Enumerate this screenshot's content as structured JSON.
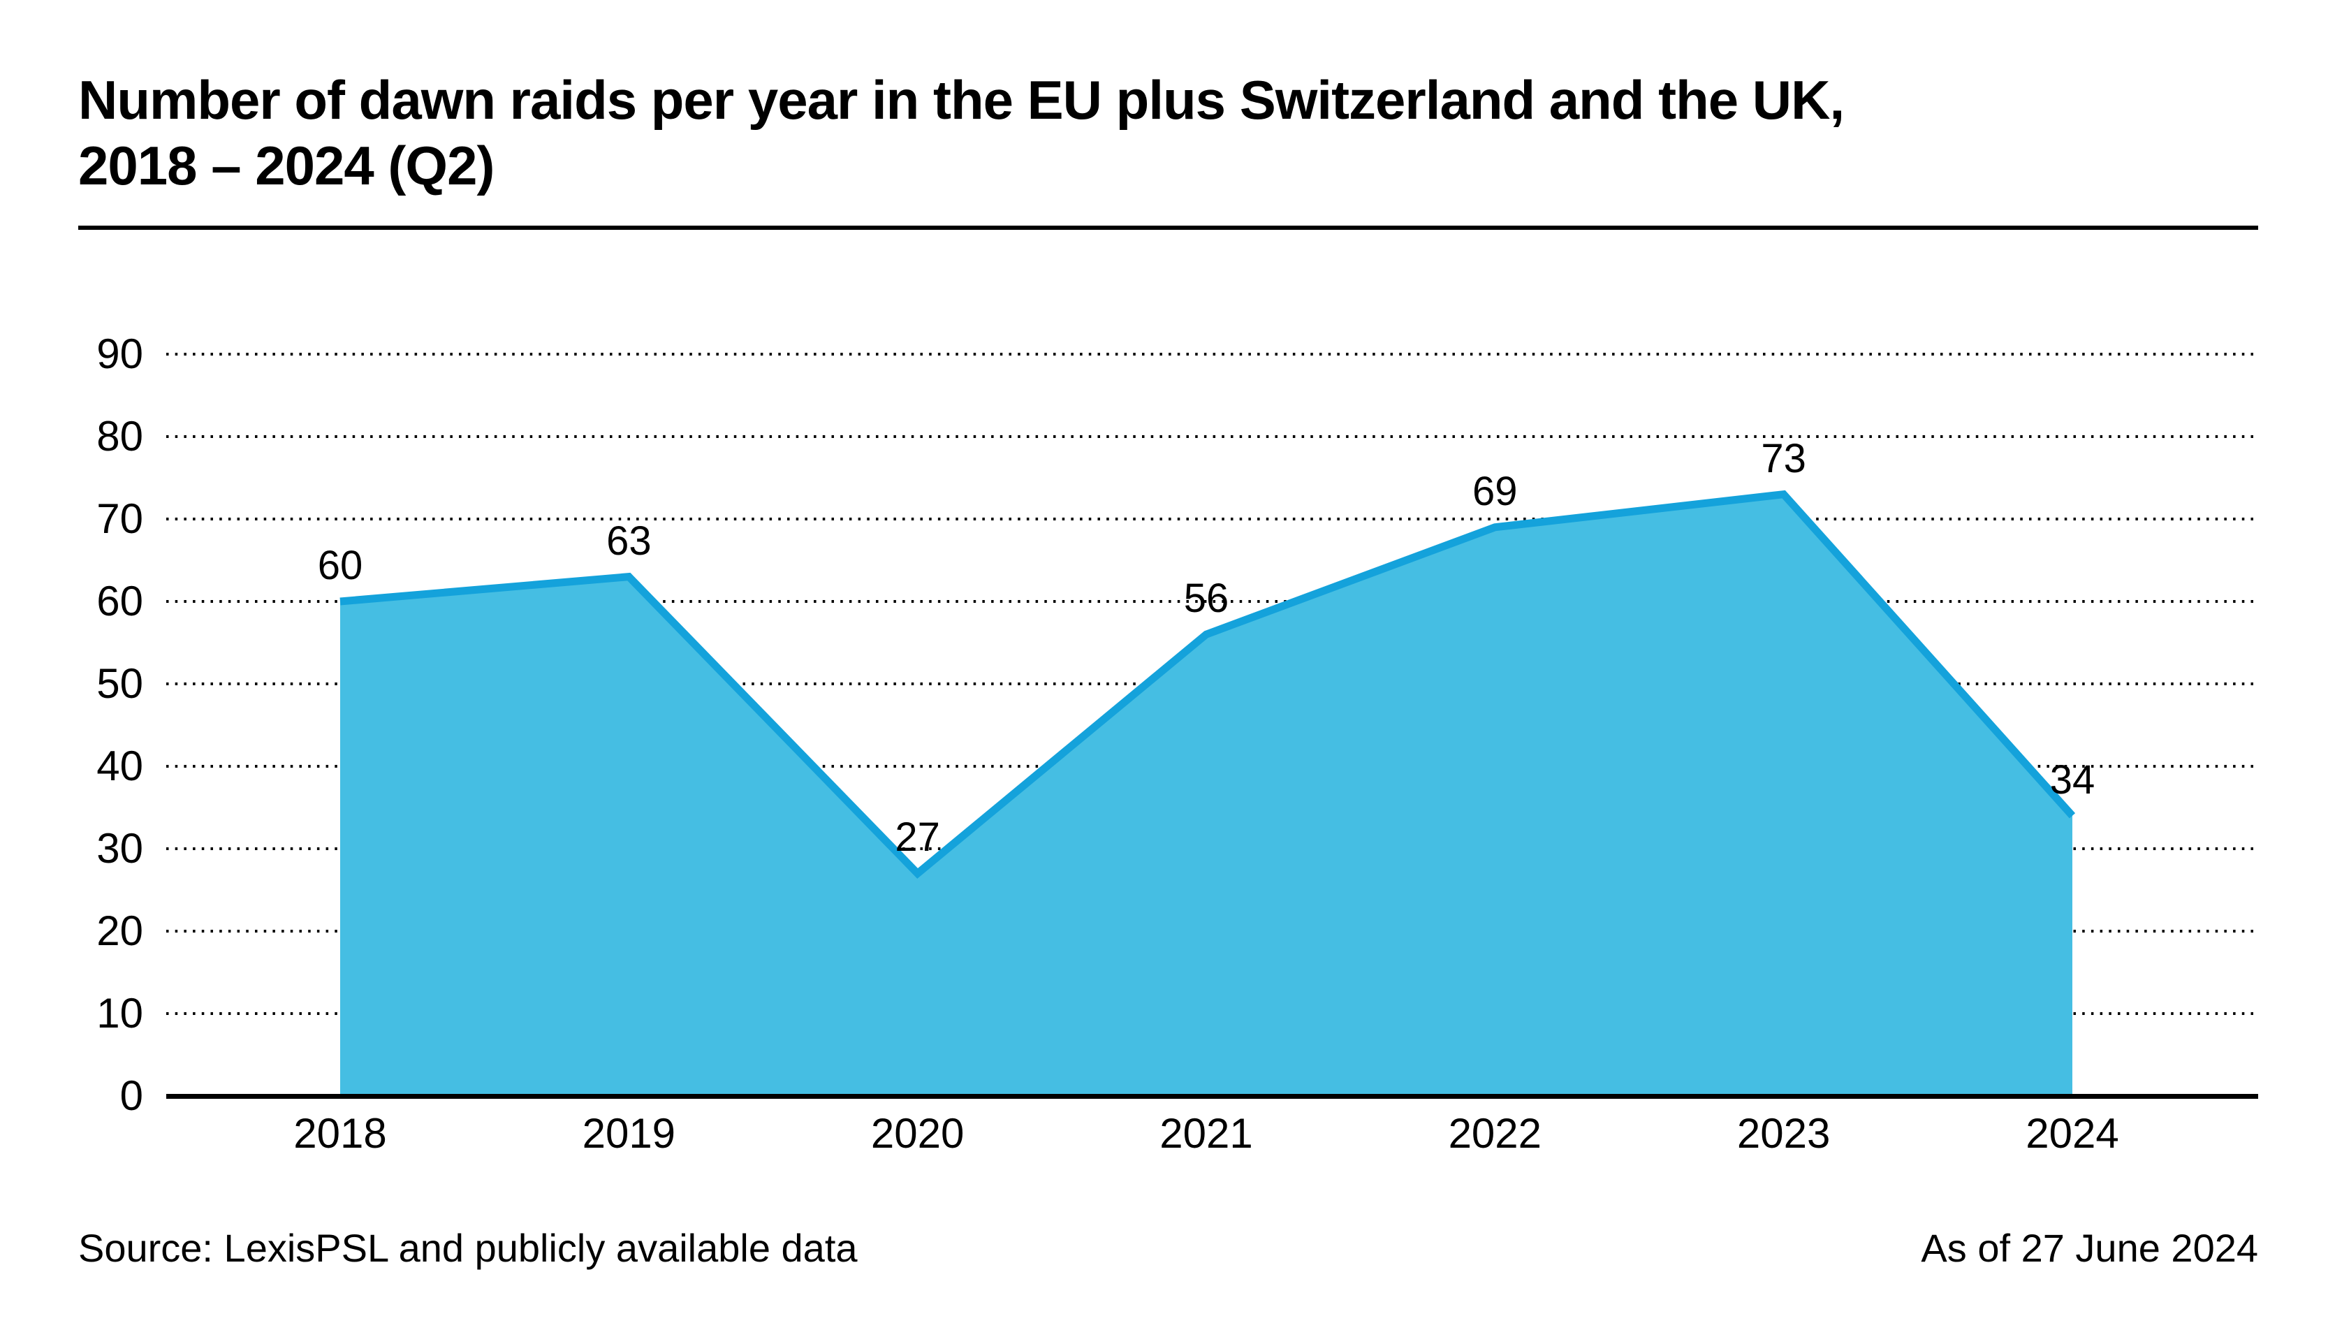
{
  "title_lines": [
    "Number of dawn raids per year in the EU plus Switzerland and the UK,",
    "2018 – 2024 (Q2)"
  ],
  "footer": {
    "source": "Source: LexisPSL and publicly available data",
    "as_of": "As of 27 June 2024"
  },
  "chart_data": {
    "type": "area",
    "title": "Number of dawn raids per year in the EU plus Switzerland and the UK, 2018 – 2024 (Q2)",
    "categories": [
      "2018",
      "2019",
      "2020",
      "2021",
      "2022",
      "2023",
      "2024"
    ],
    "values": [
      60,
      63,
      27,
      56,
      69,
      73,
      34
    ],
    "data_labels": [
      "60",
      "63",
      "27",
      "56",
      "69",
      "73",
      "34"
    ],
    "y_ticks": [
      0,
      10,
      20,
      30,
      40,
      50,
      60,
      70,
      80,
      90
    ],
    "ylim": [
      0,
      90
    ],
    "xlabel": "",
    "ylabel": "",
    "grid": "horizontal-dotted",
    "legend_position": "none",
    "colors": {
      "area_fill": "#45bee3",
      "line_stroke": "#14a2db",
      "grid_dots": "#000000",
      "axis": "#000000",
      "text": "#000000"
    }
  }
}
